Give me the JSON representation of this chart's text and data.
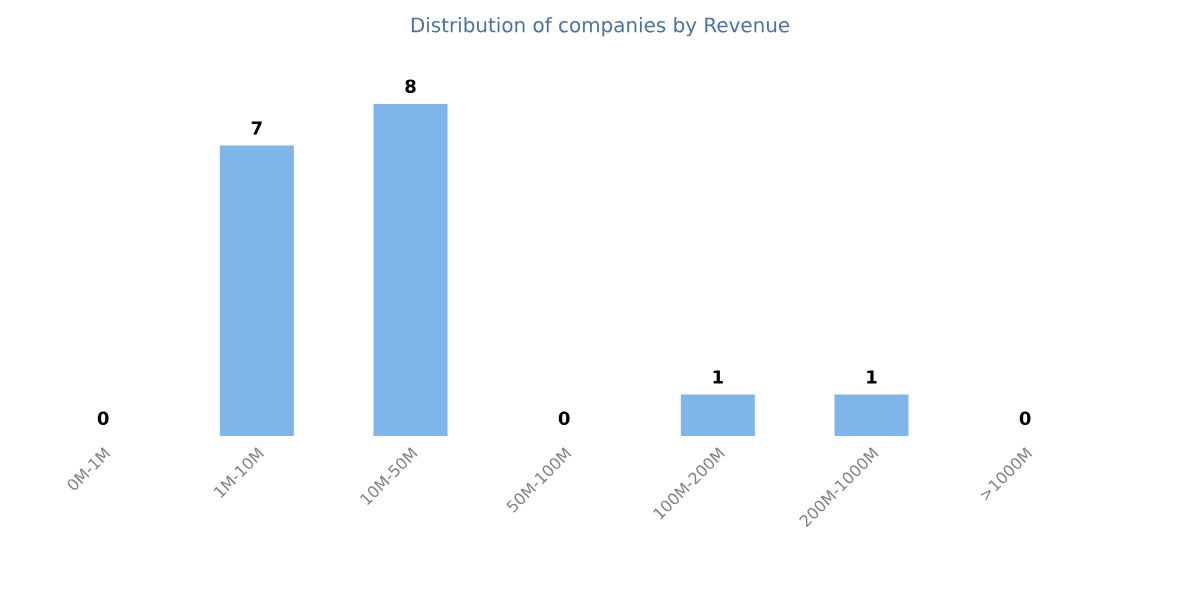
{
  "chart_data": {
    "type": "bar",
    "title": "Distribution of companies by Revenue",
    "categories": [
      "0M-1M",
      "1M-10M",
      "10M-50M",
      "50M-100M",
      "100M-200M",
      "200M-1000M",
      ">1000M"
    ],
    "values": [
      0,
      7,
      8,
      0,
      1,
      1,
      0
    ],
    "color": "#7eb6ec",
    "data_labels": true
  }
}
